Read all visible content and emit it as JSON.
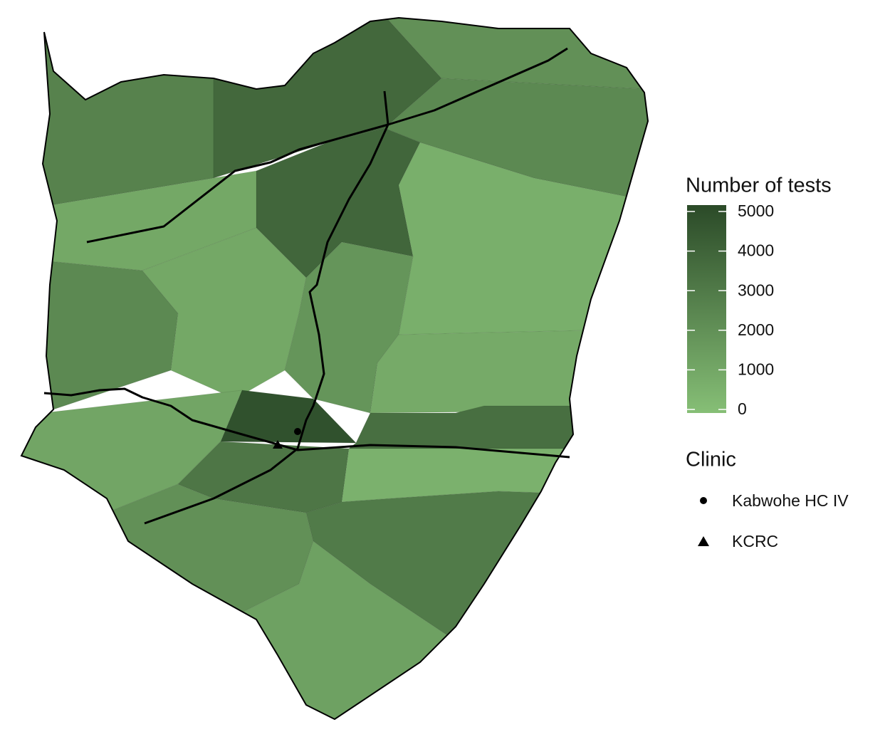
{
  "legend": {
    "fill": {
      "title": "Number of tests",
      "lim": [
        0,
        5000
      ],
      "ticks": [
        0,
        1000,
        2000,
        3000,
        4000,
        5000
      ],
      "low_color": "#86bf76",
      "high_color": "#2b4a28"
    },
    "shape": {
      "title": "Clinic",
      "entries": [
        "Kabwohe HC IV",
        "KCRC"
      ]
    }
  },
  "regions": [
    {
      "value": 2600
    },
    {
      "value": 3700
    },
    {
      "value": 2000
    },
    {
      "value": 2300
    },
    {
      "value": 3800
    },
    {
      "value": 1000
    },
    {
      "value": 700
    },
    {
      "value": 2300
    },
    {
      "value": 1000
    },
    {
      "value": 1800
    },
    {
      "value": 900
    },
    {
      "value": 4700
    },
    {
      "value": 3400
    },
    {
      "value": 1100
    },
    {
      "value": 3100
    },
    {
      "value": 600
    },
    {
      "value": 2900
    },
    {
      "value": 2000
    },
    {
      "value": 1300
    }
  ]
}
